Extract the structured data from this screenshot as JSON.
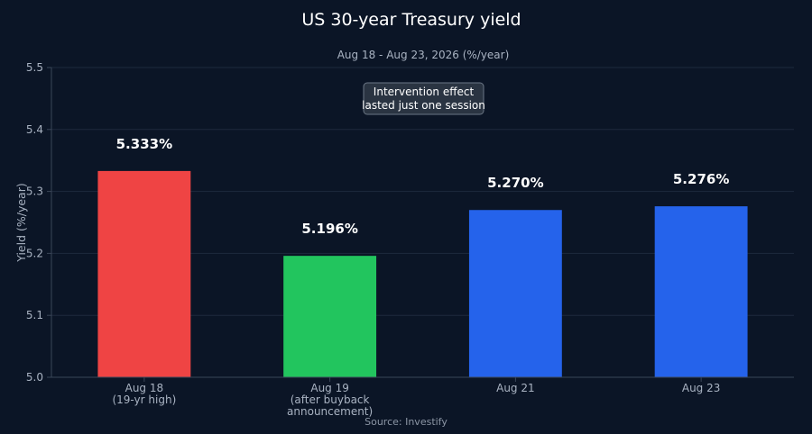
{
  "chart_data": {
    "type": "bar",
    "title": "US 30-year Treasury yield",
    "subtitle": "Aug 18 - Aug 23, 2026 (%/year)",
    "ylabel": "Yield (%/year)",
    "xlabel": "",
    "ylim": [
      5.0,
      5.5
    ],
    "yticks": [
      "5.0",
      "5.1",
      "5.2",
      "5.3",
      "5.4",
      "5.5"
    ],
    "grid": true,
    "categories": [
      [
        "Aug 18",
        "(19-yr high)"
      ],
      [
        "Aug 19",
        "(after buyback",
        "announcement)"
      ],
      [
        "Aug 21"
      ],
      [
        "Aug 23"
      ]
    ],
    "values": [
      5.333,
      5.196,
      5.27,
      5.276
    ],
    "data_labels": [
      "5.333%",
      "5.196%",
      "5.270%",
      "5.276%"
    ],
    "bar_colors": [
      "#ef4444",
      "#22c55e",
      "#2563eb",
      "#2563eb"
    ],
    "annotation": [
      "Intervention effect",
      "lasted just one session"
    ],
    "source": "Source: Investify"
  },
  "colors": {
    "background": "#0b1526",
    "grid": "#1e2a3d",
    "axis": "#3a4658",
    "annotation_bg": "#2a3442",
    "annotation_border": "#6b7685"
  }
}
